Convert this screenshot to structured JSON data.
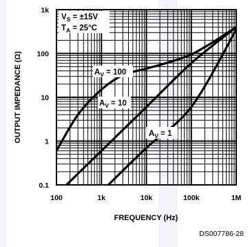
{
  "colors": {
    "background": "#ffffff",
    "ink": "#000000",
    "watermark": "#eef0f8"
  },
  "chart_data": {
    "type": "line",
    "xlabel": "FREQUENCY (Hz)",
    "ylabel": "OUTPUT IMPEDANCE (Ω)",
    "x_scale": "log",
    "y_scale": "log",
    "xlim": [
      100,
      1000000
    ],
    "ylim": [
      0.1,
      1000
    ],
    "x_ticks": [
      100,
      1000,
      10000,
      100000,
      1000000
    ],
    "x_tick_labels": [
      "100",
      "1k",
      "10k",
      "100k",
      "1M"
    ],
    "y_ticks": [
      0.1,
      1,
      10,
      100,
      1000
    ],
    "y_tick_labels": [
      "0.1",
      "1",
      "10",
      "100",
      "1k"
    ],
    "grid": "major and minor (log)",
    "conditions": {
      "vs": {
        "main": "V",
        "sub": "S",
        "rest": " = ±15V"
      },
      "ta": {
        "main": "T",
        "sub": "A",
        "rest": " = 25°C"
      }
    },
    "series": [
      {
        "name": "A_V = 100",
        "label": {
          "main": "A",
          "sub": "V",
          "rest": " = 100"
        },
        "x": [
          100,
          300,
          1000,
          3000,
          10000,
          30000,
          100000,
          300000,
          1000000
        ],
        "y": [
          0.6,
          4,
          15,
          32,
          45,
          62,
          95,
          180,
          400
        ]
      },
      {
        "name": "A_V = 10",
        "label": {
          "main": "A",
          "sub": "V",
          "rest": " = 10"
        },
        "x": [
          100,
          1000,
          10000,
          100000,
          1000000
        ],
        "y": [
          0.06,
          0.6,
          6,
          60,
          400
        ]
      },
      {
        "name": "A_V = 1",
        "label": {
          "main": "A",
          "sub": "V",
          "rest": " = 1"
        },
        "x": [
          1000,
          10000,
          100000,
          1000000
        ],
        "y": [
          0.07,
          0.7,
          6,
          350
        ]
      }
    ]
  },
  "figure_code": "DS007786-28"
}
